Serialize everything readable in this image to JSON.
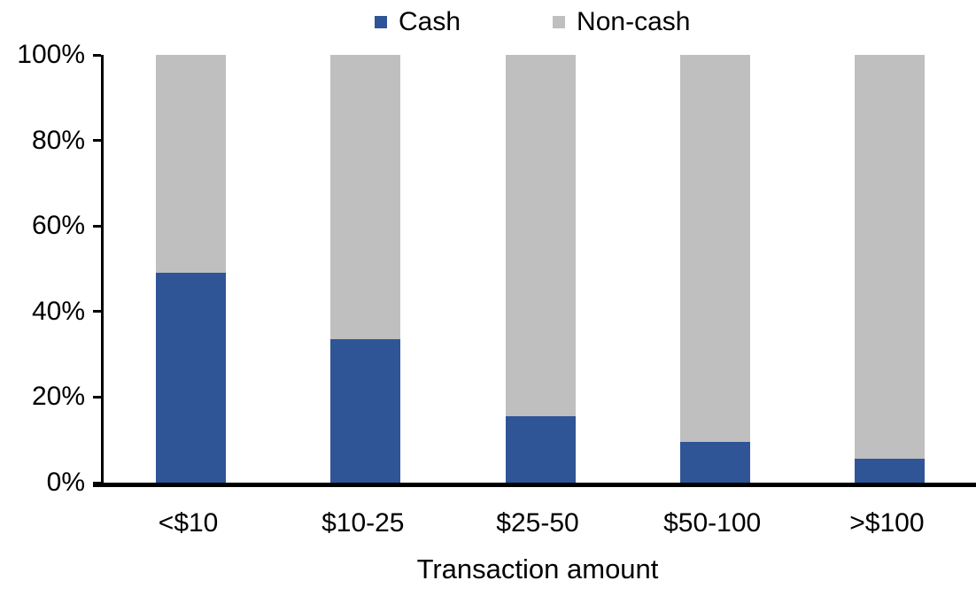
{
  "chart_data": {
    "type": "bar",
    "variant": "stacked-100-percent",
    "title": "",
    "xlabel": "Transaction amount",
    "ylabel": "",
    "categories": [
      "<$10",
      "$10-25",
      "$25-50",
      "$50-100",
      ">$100"
    ],
    "series": [
      {
        "name": "Cash",
        "color": "#2F5597",
        "values": [
          49,
          33.5,
          15.5,
          9.5,
          5.5
        ]
      },
      {
        "name": "Non-cash",
        "color": "#BFBFBF",
        "values": [
          51,
          66.5,
          84.5,
          90.5,
          94.5
        ]
      }
    ],
    "ylim": [
      0,
      100
    ],
    "ytick_values": [
      0,
      20,
      40,
      60,
      80,
      100
    ],
    "ytick_labels": [
      "0%",
      "20%",
      "40%",
      "60%",
      "80%",
      "100%"
    ],
    "legend_position": "top",
    "grid": false,
    "axis_color": "#000000",
    "background_color": "#FFFFFF"
  }
}
